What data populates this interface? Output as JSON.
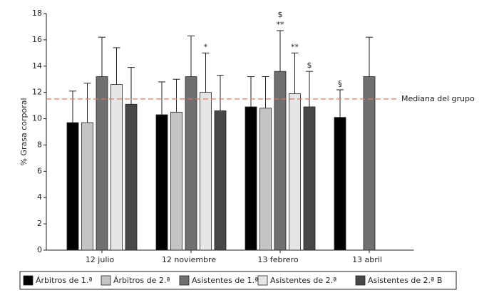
{
  "chart_data": {
    "type": "bar",
    "ylabel": "% Grasa corporal",
    "categories": [
      "12 julio",
      "12 noviembre",
      "13 febrero",
      "13 abril"
    ],
    "ylim": [
      0,
      18
    ],
    "yticks": [
      0,
      2,
      4,
      6,
      8,
      10,
      12,
      14,
      16,
      18
    ],
    "series": [
      {
        "name": "Árbitros de 1.ª",
        "color": "#000000",
        "values": [
          9.7,
          10.3,
          10.9,
          10.1
        ],
        "errors": [
          2.4,
          2.5,
          2.3,
          2.1
        ]
      },
      {
        "name": "Árbitros de 2.ª",
        "color": "#c4c4c4",
        "values": [
          9.7,
          10.5,
          10.8,
          null
        ],
        "errors": [
          3.0,
          2.5,
          2.4,
          null
        ]
      },
      {
        "name": "Asistentes de 1.ª",
        "color": "#707070",
        "values": [
          13.2,
          13.2,
          13.6,
          13.2
        ],
        "errors": [
          3.0,
          3.1,
          3.1,
          3.0
        ]
      },
      {
        "name": "Asistentes de 2.ª",
        "color": "#e6e6e6",
        "values": [
          12.6,
          12.0,
          11.9,
          null
        ],
        "errors": [
          2.8,
          3.0,
          3.1,
          null
        ]
      },
      {
        "name": "Asistentes de 2.ª B",
        "color": "#474747",
        "values": [
          11.1,
          10.6,
          10.9,
          null
        ],
        "errors": [
          2.8,
          2.7,
          2.7,
          null
        ]
      }
    ],
    "reference_line": {
      "value": 11.5,
      "label": "Mediana del grupo",
      "color": "#e07a5f"
    },
    "annotations": [
      {
        "text": "*",
        "series": "Asistentes de 2.ª",
        "category": "12 noviembre"
      },
      {
        "text": "**",
        "series": "Asistentes de 1.ª",
        "category": "13 febrero"
      },
      {
        "text": "$",
        "series": "Asistentes de 1.ª",
        "category": "13 febrero"
      },
      {
        "text": "**",
        "series": "Asistentes de 2.ª",
        "category": "13 febrero"
      },
      {
        "text": "$",
        "series": "Asistentes de 2.ª B",
        "category": "13 febrero"
      },
      {
        "text": "§",
        "series": "Árbitros de 1.ª",
        "category": "13 abril"
      }
    ],
    "legend": "bottom"
  }
}
